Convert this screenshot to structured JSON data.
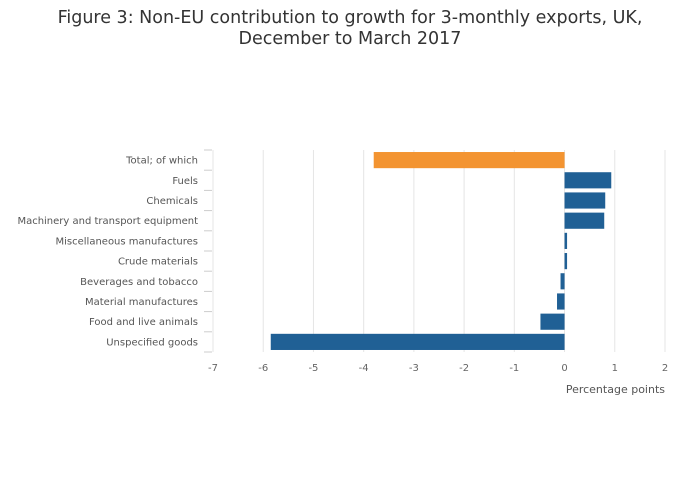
{
  "chart_data": {
    "type": "bar",
    "orientation": "horizontal",
    "title_lines": [
      "Figure 3: Non-EU contribution to growth for 3-monthly exports, UK,",
      "December to March 2017"
    ],
    "categories": [
      "Total; of which",
      "Fuels",
      "Chemicals",
      "Machinery and transport equipment",
      "Miscellaneous manufactures",
      "Crude materials",
      "Beverages and tobacco",
      "Material manufactures",
      "Food and live animals",
      "Unspecified goods"
    ],
    "values": [
      -3.8,
      0.93,
      0.81,
      0.79,
      0.05,
      0.05,
      -0.08,
      -0.15,
      -0.48,
      -5.85
    ],
    "highlight_index": 0,
    "colors": {
      "highlight": "#f39431",
      "default": "#206095",
      "grid": "#e5e5e5",
      "tick": "#cccccc"
    },
    "xlim": [
      -7,
      2
    ],
    "xticks": [
      -7,
      -6,
      -5,
      -4,
      -3,
      -2,
      -1,
      0,
      1,
      2
    ],
    "xtick_labels": [
      "-7",
      "-6",
      "-5",
      "-4",
      "-3",
      "-2",
      "-1",
      "0",
      "1",
      "2"
    ],
    "xlabel": "Percentage points",
    "ylabel": "",
    "grid": true,
    "legend": "none"
  }
}
